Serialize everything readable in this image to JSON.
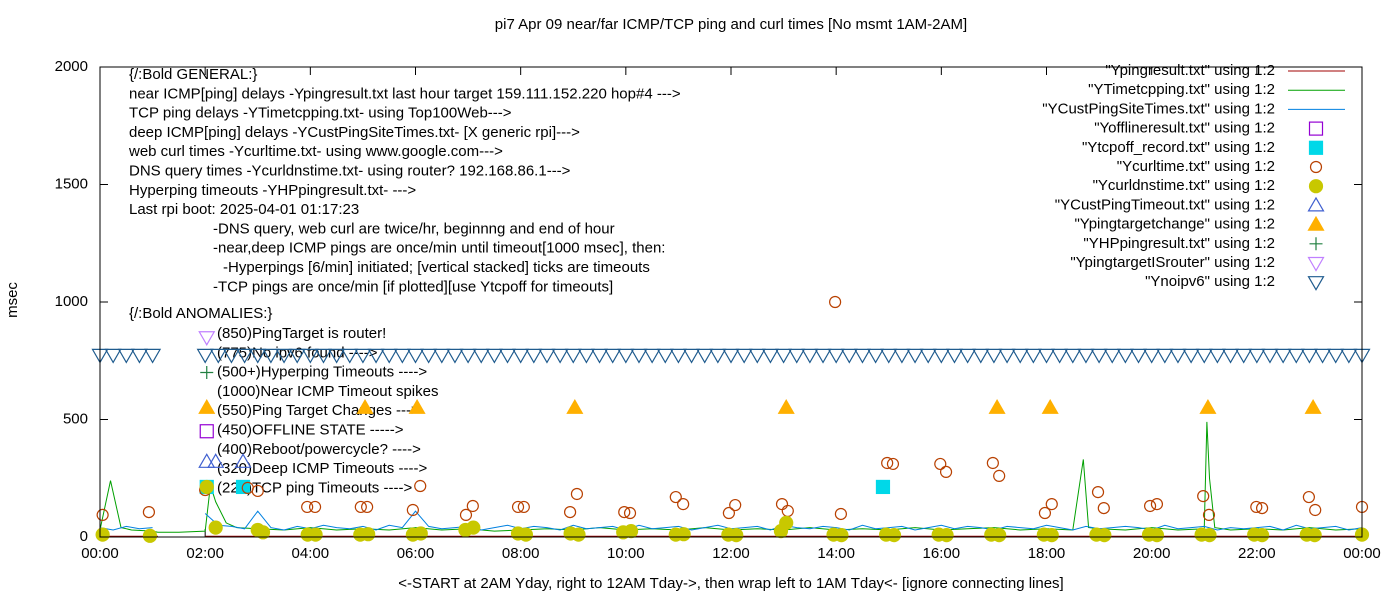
{
  "chart_data": {
    "type": "scatter",
    "title": "pi7 Apr 09  near/far ICMP/TCP ping and curl times [No msmt 1AM-2AM]",
    "xlabel": "<-START at 2AM Yday, right to 12AM Tday->, then wrap left to 1AM Tday<- [ignore connecting lines]",
    "ylabel": "msec",
    "xlim": [
      0,
      24
    ],
    "ylim": [
      0,
      2000
    ],
    "xticks": [
      {
        "value": 0,
        "label": "00:00"
      },
      {
        "value": 2,
        "label": "02:00"
      },
      {
        "value": 4,
        "label": "04:00"
      },
      {
        "value": 6,
        "label": "06:00"
      },
      {
        "value": 8,
        "label": "08:00"
      },
      {
        "value": 10,
        "label": "10:00"
      },
      {
        "value": 12,
        "label": "12:00"
      },
      {
        "value": 14,
        "label": "14:00"
      },
      {
        "value": 16,
        "label": "16:00"
      },
      {
        "value": 18,
        "label": "18:00"
      },
      {
        "value": 20,
        "label": "20:00"
      },
      {
        "value": 22,
        "label": "22:00"
      },
      {
        "value": 24,
        "label": "00:00"
      }
    ],
    "yticks": [
      0,
      500,
      1000,
      1500,
      2000
    ],
    "legend_position": "upper-right",
    "notes": [
      "{/:Bold GENERAL:}",
      "near ICMP[ping] delays -Ypingresult.txt last hour target 159.111.152.220 hop#4 --->",
      "TCP ping delays -YTimetcpping.txt- using Top100Web--->",
      "deep ICMP[ping] delays -YCustPingSiteTimes.txt- [X generic rpi]--->",
      "web curl times -Ycurltime.txt- using www.google.com--->",
      "DNS query times -Ycurldnstime.txt- using router? 192.168.86.1--->",
      "Hyperping timeouts -YHPpingresult.txt- --->",
      "Last rpi boot: 2025-04-01 01:17:23"
    ],
    "note_details": [
      "-DNS query, web curl are twice/hr, beginnng and end of hour",
      "-near,deep ICMP pings are once/min until timeout[1000 msec], then:",
      "-Hyperpings [6/min] initiated; [vertical stacked] ticks are timeouts",
      "-TCP pings are once/min [if plotted][use Ytcpoff for timeouts]"
    ],
    "anomalies_heading": "{/:Bold ANOMALIES:}",
    "anomalies": [
      "(850)PingTarget is router!",
      "(775)No ipv6 found ---->",
      "(500+)Hyperping Timeouts ---->",
      "(1000)Near ICMP Timeout spikes",
      "(550)Ping Target Changes --->",
      "(450)OFFLINE STATE ----->",
      "(400)Reboot/powercycle? ---->",
      "(320)Deep ICMP Timeouts ---->",
      "(220)TCP ping Timeouts ---->"
    ],
    "series": [
      {
        "name": "\"Ypingresult.txt\" using 1:2",
        "color": "#a00000",
        "marker": "line",
        "x": [
          0,
          1.1,
          1.5,
          2,
          24
        ],
        "values": [
          3,
          3,
          null,
          3,
          3
        ]
      },
      {
        "name": "\"YTimetcpping.txt\" using 1:2",
        "color": "#00a000",
        "marker": "line",
        "x": [
          0,
          0.2,
          0.4,
          0.6,
          1.0,
          1.1,
          1.5,
          2.0,
          2.1,
          2.2,
          2.4,
          2.6,
          3,
          3.5,
          4,
          4.5,
          5,
          5.5,
          6,
          6.5,
          7,
          7.5,
          8,
          8.5,
          9,
          9.5,
          10,
          10.5,
          11,
          11.5,
          12,
          12.5,
          13,
          13.5,
          14,
          14.5,
          15,
          15.5,
          16,
          16.5,
          17,
          17.5,
          18,
          18.5,
          18.7,
          18.8,
          19,
          19.5,
          20,
          20.5,
          21,
          21.05,
          21.1,
          21.2,
          21.5,
          22,
          22.5,
          23,
          23.5,
          24
        ],
        "values": [
          30,
          240,
          40,
          30,
          25,
          20,
          20,
          25,
          220,
          150,
          60,
          40,
          35,
          30,
          40,
          30,
          35,
          30,
          40,
          30,
          35,
          25,
          30,
          35,
          30,
          40,
          30,
          35,
          30,
          40,
          30,
          35,
          30,
          40,
          30,
          35,
          30,
          40,
          30,
          35,
          40,
          30,
          35,
          30,
          330,
          40,
          35,
          30,
          40,
          30,
          35,
          490,
          250,
          40,
          30,
          35,
          30,
          40,
          30,
          35
        ]
      },
      {
        "name": "\"YCustPingSiteTimes.txt\" using 1:2",
        "color": "#0080e0",
        "marker": "line",
        "x": [
          0,
          0.25,
          0.5,
          0.75,
          1,
          1.5,
          2,
          2.25,
          2.5,
          2.75,
          3,
          3.25,
          3.5,
          3.75,
          4,
          4.25,
          4.5,
          4.75,
          5,
          5.25,
          5.5,
          5.75,
          6,
          6.25,
          6.5,
          6.75,
          7,
          7.25,
          7.5,
          7.75,
          8,
          8.25,
          8.5,
          8.75,
          9,
          9.25,
          9.5,
          9.75,
          10,
          10.25,
          10.5,
          10.75,
          11,
          11.25,
          11.5,
          11.75,
          12,
          12.25,
          12.5,
          12.75,
          13,
          13.25,
          13.5,
          13.75,
          14,
          14.25,
          14.5,
          14.75,
          15,
          15.25,
          15.5,
          15.75,
          16,
          16.25,
          16.5,
          16.75,
          17,
          17.25,
          17.5,
          17.75,
          18,
          18.25,
          18.5,
          18.75,
          19,
          19.25,
          19.5,
          19.75,
          20,
          20.25,
          20.5,
          20.75,
          21,
          21.25,
          21.5,
          21.75,
          22,
          22.25,
          22.5,
          22.75,
          23,
          23.25,
          23.5,
          23.75,
          24
        ],
        "values": [
          40,
          30,
          45,
          35,
          40,
          null,
          100,
          50,
          45,
          35,
          110,
          40,
          30,
          45,
          35,
          50,
          40,
          35,
          45,
          30,
          50,
          40,
          110,
          45,
          35,
          40,
          45,
          30,
          40,
          50,
          35,
          45,
          40,
          30,
          50,
          35,
          40,
          45,
          30,
          50,
          35,
          40,
          45,
          30,
          40,
          50,
          35,
          40,
          45,
          30,
          50,
          40,
          35,
          45,
          40,
          30,
          50,
          35,
          40,
          45,
          30,
          40,
          50,
          35,
          45,
          40,
          30,
          45,
          40,
          35,
          50,
          40,
          30,
          45,
          35,
          40,
          45,
          40,
          30,
          50,
          35,
          40,
          45,
          30,
          40,
          35,
          40,
          45,
          30,
          50,
          35,
          40,
          45,
          30,
          40
        ]
      },
      {
        "name": "\"Yofflineresult.txt\" using 1:2",
        "color": "#9400d3",
        "marker": "square-open",
        "x": [
          2.03
        ],
        "values": [
          450
        ]
      },
      {
        "name": "\"Ytcpoff_record.txt\" using 1:2",
        "color": "#00d8e8",
        "marker": "square",
        "x": [
          2.03,
          2.72,
          14.89
        ],
        "values": [
          213,
          213,
          213
        ]
      },
      {
        "name": "\"Ycurltime.txt\" using 1:2",
        "color": "#b84000",
        "marker": "circle-open",
        "x": [
          0.05,
          0.93,
          2.0,
          2.81,
          3.0,
          3.94,
          4.09,
          4.96,
          5.08,
          5.95,
          6.09,
          6.96,
          7.09,
          7.95,
          8.06,
          8.94,
          9.07,
          9.97,
          10.08,
          10.95,
          11.09,
          11.96,
          12.08,
          12.97,
          13.08,
          13.98,
          14.09,
          14.97,
          15.08,
          15.98,
          16.09,
          16.98,
          17.1,
          17.97,
          18.1,
          18.98,
          19.09,
          19.97,
          20.1,
          20.98,
          21.09,
          21.99,
          22.1,
          22.99,
          23.11,
          24.0
        ],
        "values": [
          94,
          106,
          200,
          209,
          196,
          128,
          128,
          128,
          128,
          115,
          217,
          94,
          132,
          128,
          128,
          106,
          183,
          106,
          102,
          170,
          140,
          102,
          136,
          140,
          111,
          1000,
          98,
          315,
          311,
          311,
          277,
          315,
          260,
          102,
          140,
          191,
          123,
          132,
          140,
          174,
          94,
          128,
          123,
          170,
          115,
          128
        ]
      },
      {
        "name": "\"Ycurldnstime.txt\" using 1:2",
        "color": "#c8c800",
        "marker": "circle",
        "x": [
          0.05,
          0.95,
          2.03,
          2.2,
          3.0,
          3.1,
          3.95,
          4.1,
          4.95,
          5.1,
          5.95,
          6.1,
          6.95,
          7.1,
          7.95,
          8.1,
          8.95,
          9.1,
          9.95,
          10.1,
          10.95,
          11.1,
          11.95,
          12.1,
          12.95,
          13.05,
          13.95,
          14.1,
          14.95,
          15.1,
          15.95,
          16.1,
          16.95,
          17.1,
          17.95,
          18.1,
          18.95,
          19.1,
          19.95,
          20.1,
          20.95,
          21.1,
          21.95,
          22.1,
          22.95,
          23.1,
          24
        ],
        "values": [
          10,
          5,
          213,
          40,
          30,
          20,
          10,
          10,
          10,
          12,
          10,
          15,
          30,
          40,
          15,
          10,
          15,
          10,
          20,
          25,
          10,
          12,
          10,
          8,
          25,
          60,
          10,
          8,
          10,
          8,
          10,
          8,
          10,
          8,
          10,
          8,
          10,
          8,
          10,
          8,
          10,
          8,
          10,
          8,
          10,
          8,
          10
        ]
      },
      {
        "name": "\"YCustPingTimeout.txt\" using 1:2",
        "color": "#4060d0",
        "marker": "triangle-open",
        "x": [
          2.03,
          2.2,
          2.72
        ],
        "values": [
          320,
          320,
          320
        ]
      },
      {
        "name": "\"Ypingtargetchange\" using 1:2",
        "color": "#ffb000",
        "marker": "triangle",
        "x": [
          2.03,
          5.04,
          6.03,
          9.03,
          13.05,
          17.06,
          18.07,
          21.07,
          23.07
        ],
        "values": [
          550,
          550,
          550,
          550,
          550,
          550,
          550,
          550,
          550
        ]
      },
      {
        "name": "\"YHPpingresult.txt\" using 1:2",
        "color": "#208040",
        "marker": "plus",
        "x": [
          2.03
        ],
        "values": [
          700
        ]
      },
      {
        "name": "\"YpingtargetISrouter\" using 1:2",
        "color": "#c080ff",
        "marker": "triangle-down-open",
        "x": [
          2.03
        ],
        "values": [
          850
        ]
      },
      {
        "name": "\"Ynoipv6\" using 1:2",
        "color": "#1f5b8e",
        "marker": "triangle-down-open",
        "x": [
          0,
          0.25,
          0.5,
          0.75,
          1,
          2,
          2.25,
          2.5,
          2.75,
          3,
          3.25,
          3.5,
          3.75,
          4,
          4.25,
          4.5,
          4.75,
          5,
          5.25,
          5.5,
          5.75,
          6,
          6.25,
          6.5,
          6.75,
          7,
          7.25,
          7.5,
          7.75,
          8,
          8.25,
          8.5,
          8.75,
          9,
          9.25,
          9.5,
          9.75,
          10,
          10.25,
          10.5,
          10.75,
          11,
          11.25,
          11.5,
          11.75,
          12,
          12.25,
          12.5,
          12.75,
          13,
          13.25,
          13.5,
          13.75,
          14,
          14.25,
          14.5,
          14.75,
          15,
          15.25,
          15.5,
          15.75,
          16,
          16.25,
          16.5,
          16.75,
          17,
          17.25,
          17.5,
          17.75,
          18,
          18.25,
          18.5,
          18.75,
          19,
          19.25,
          19.5,
          19.75,
          20,
          20.25,
          20.5,
          20.75,
          21,
          21.25,
          21.5,
          21.75,
          22,
          22.25,
          22.5,
          22.75,
          23,
          23.25,
          23.5,
          23.75,
          24
        ],
        "values": [
          775,
          775,
          775,
          775,
          775,
          775,
          775,
          775,
          775,
          775,
          775,
          775,
          775,
          775,
          775,
          775,
          775,
          775,
          775,
          775,
          775,
          775,
          775,
          775,
          775,
          775,
          775,
          775,
          775,
          775,
          775,
          775,
          775,
          775,
          775,
          775,
          775,
          775,
          775,
          775,
          775,
          775,
          775,
          775,
          775,
          775,
          775,
          775,
          775,
          775,
          775,
          775,
          775,
          775,
          775,
          775,
          775,
          775,
          775,
          775,
          775,
          775,
          775,
          775,
          775,
          775,
          775,
          775,
          775,
          775,
          775,
          775,
          775,
          775,
          775,
          775,
          775,
          775,
          775,
          775,
          775,
          775,
          775,
          775,
          775,
          775,
          775,
          775,
          775,
          775,
          775,
          775,
          775,
          775
        ]
      }
    ]
  }
}
